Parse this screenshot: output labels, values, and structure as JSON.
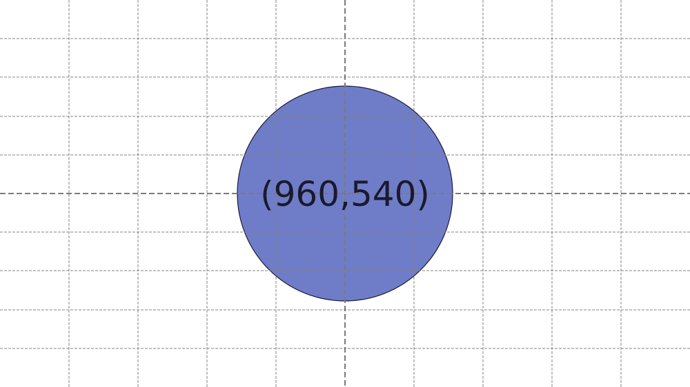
{
  "canvas": {
    "background": "#ffffff",
    "grid_color": "#808080",
    "axis_color": "#7a7a7a"
  },
  "circle": {
    "fill": "#6f7dc8",
    "stroke": "#1a1a3a",
    "label": "(960,540)",
    "label_color": "#1a1a2e"
  }
}
